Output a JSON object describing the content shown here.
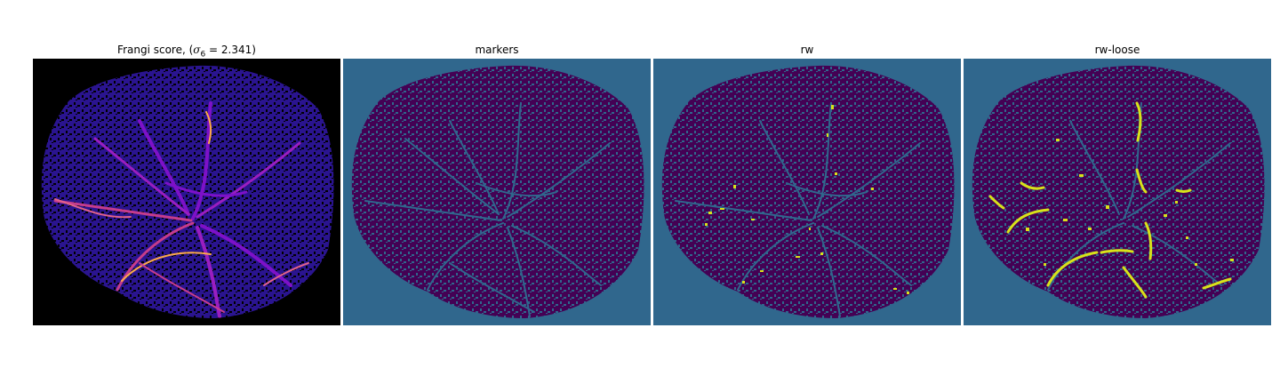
{
  "figure": {
    "panels": [
      {
        "id": "frangi",
        "title_prefix": "Frangi score, (",
        "title_sigma": "σ",
        "title_sub": "6",
        "title_suffix": " = 2.341)",
        "colors": {
          "background": "#000000",
          "tissue": "#2a148f",
          "vessel_low": "#7d11c8",
          "vessel_mid": "#c53c8c",
          "vessel_high": "#fca94a"
        }
      },
      {
        "id": "markers",
        "title": "markers",
        "colors": {
          "background": "#30678d",
          "tissue": "#440154"
        }
      },
      {
        "id": "rw",
        "title": "rw",
        "colors": {
          "background": "#30678d",
          "tissue": "#440154",
          "highlight": "#d8e219"
        }
      },
      {
        "id": "rw-loose",
        "title": "rw-loose",
        "colors": {
          "background": "#30678d",
          "tissue": "#440154",
          "highlight": "#d8e219"
        }
      }
    ]
  }
}
